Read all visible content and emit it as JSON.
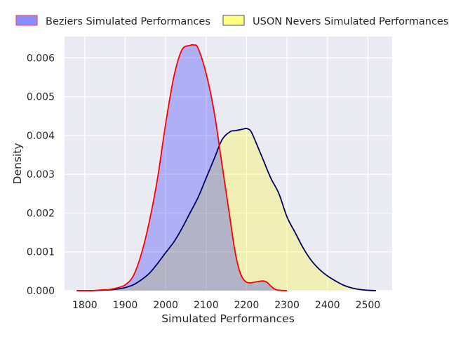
{
  "chart_data": {
    "type": "area",
    "title": "",
    "xlabel": "Simulated Performances",
    "ylabel": "Density",
    "xlim": [
      1750,
      2560
    ],
    "ylim": [
      0,
      0.00655
    ],
    "x_ticks": [
      1800,
      1900,
      2000,
      2100,
      2200,
      2300,
      2400,
      2500
    ],
    "y_ticks": [
      0.0,
      0.001,
      0.002,
      0.003,
      0.004,
      0.005,
      0.006
    ],
    "x_tick_labels": [
      "1800",
      "1900",
      "2000",
      "2100",
      "2200",
      "2300",
      "2400",
      "2500"
    ],
    "y_tick_labels": [
      "0.000",
      "0.001",
      "0.002",
      "0.003",
      "0.004",
      "0.005",
      "0.006"
    ],
    "grid": true,
    "legend_position": "top",
    "series": [
      {
        "name": "Beziers Simulated Performances",
        "line_color": "#ff0000",
        "fill_color": "#0000ff",
        "x": [
          1780,
          1800,
          1820,
          1840,
          1860,
          1880,
          1900,
          1920,
          1940,
          1960,
          1980,
          2000,
          2020,
          2040,
          2060,
          2070,
          2080,
          2100,
          2120,
          2140,
          2160,
          2170,
          2180,
          2190,
          2200,
          2210,
          2220,
          2240,
          2250,
          2260,
          2270,
          2280,
          2300
        ],
        "y": [
          0.0,
          0.0,
          0.0,
          2e-05,
          3e-05,
          7e-05,
          0.00015,
          0.00038,
          0.00095,
          0.0018,
          0.0029,
          0.0043,
          0.0055,
          0.0062,
          0.00632,
          0.00633,
          0.00625,
          0.0056,
          0.0046,
          0.0032,
          0.0018,
          0.0011,
          0.0006,
          0.00033,
          0.00022,
          0.0002,
          0.00022,
          0.00025,
          0.00022,
          0.00012,
          4e-05,
          1e-05,
          0.0
        ]
      },
      {
        "name": "USON Nevers Simulated Performances",
        "line_color": "#000066",
        "fill_color": "#ffff00",
        "x": [
          1780,
          1800,
          1820,
          1840,
          1860,
          1880,
          1900,
          1920,
          1940,
          1960,
          1980,
          2000,
          2020,
          2040,
          2060,
          2080,
          2100,
          2120,
          2140,
          2160,
          2170,
          2180,
          2190,
          2200,
          2210,
          2220,
          2240,
          2260,
          2280,
          2300,
          2320,
          2340,
          2360,
          2380,
          2400,
          2420,
          2440,
          2460,
          2480,
          2500,
          2520
        ],
        "y": [
          0.0,
          0.0,
          0.0,
          1e-05,
          2e-05,
          4e-05,
          8e-05,
          0.00015,
          0.00028,
          0.00045,
          0.0007,
          0.00098,
          0.00125,
          0.0016,
          0.002,
          0.0024,
          0.0029,
          0.0034,
          0.0039,
          0.0041,
          0.00412,
          0.00414,
          0.00416,
          0.00418,
          0.00412,
          0.0039,
          0.0034,
          0.0029,
          0.0025,
          0.0019,
          0.0015,
          0.0011,
          0.00078,
          0.00055,
          0.00038,
          0.00025,
          0.00014,
          7e-05,
          3e-05,
          1e-05,
          0.0
        ]
      }
    ]
  }
}
